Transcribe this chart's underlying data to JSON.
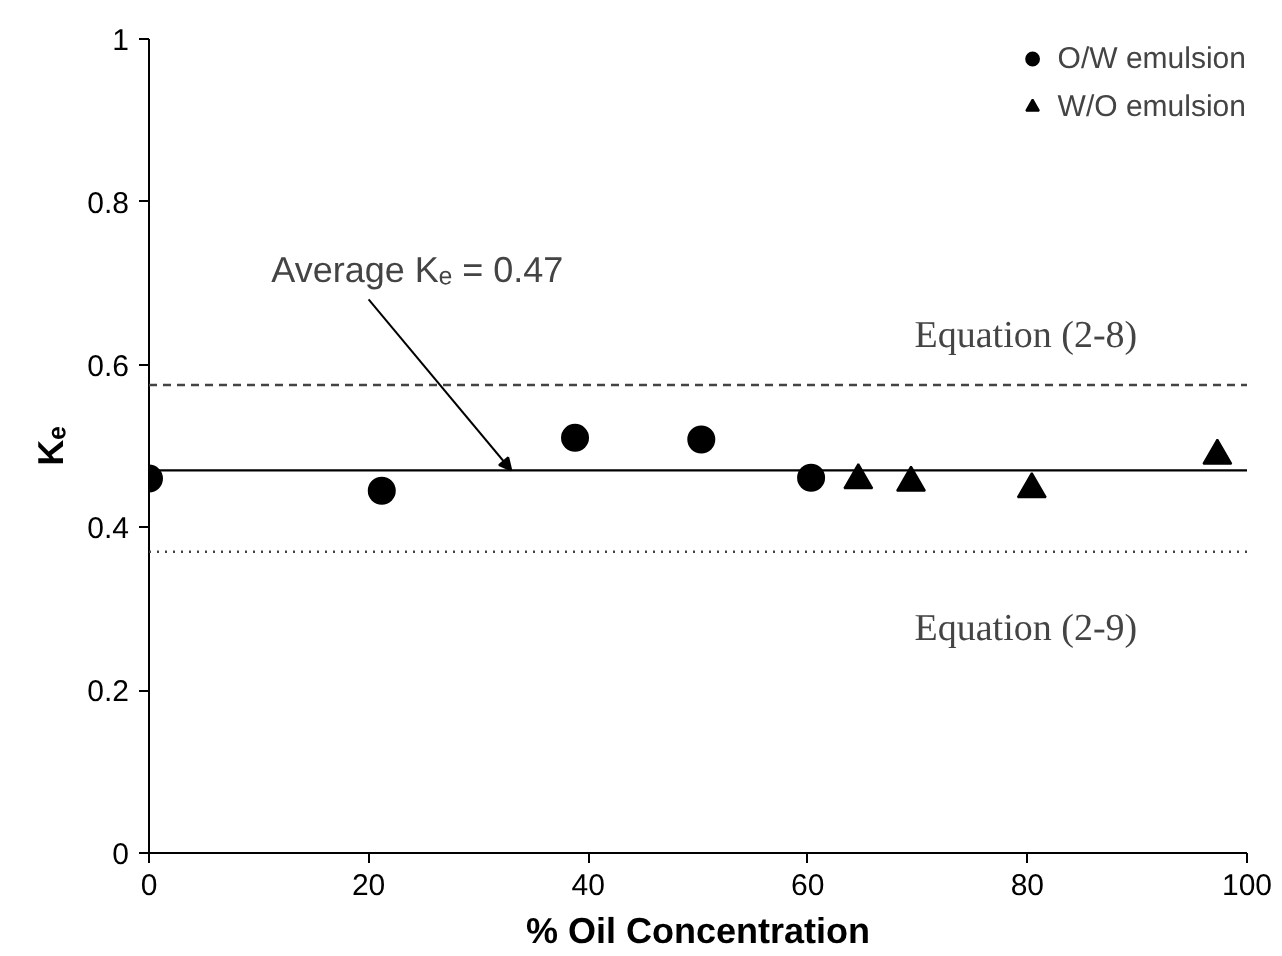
{
  "chart_data": {
    "type": "scatter",
    "xlabel": "% Oil Concentration",
    "ylabel": "Kₑ",
    "series": [
      {
        "name": "O/W emulsion",
        "color": "#000000",
        "marker": "circle",
        "x": [
          0,
          21.2,
          38.8,
          50.3,
          60.3
        ],
        "values": [
          0.46,
          0.445,
          0.51,
          0.508,
          0.461
        ]
      },
      {
        "name": "W/O emulsion",
        "color": "#000000",
        "marker": "triangle",
        "x": [
          64.6,
          69.4,
          80.4,
          97.3
        ],
        "values": [
          0.458,
          0.455,
          0.447,
          0.488
        ]
      }
    ],
    "xlim": [
      0,
      100
    ],
    "ylim": [
      0,
      1
    ],
    "xticks": [
      0,
      20,
      40,
      60,
      80,
      100
    ],
    "yticks": [
      0,
      0.2,
      0.4,
      0.6,
      0.8,
      1
    ],
    "ref_lines": [
      {
        "axis": "y",
        "value": 0.47,
        "color": "#000000",
        "line_style": "solid"
      },
      {
        "axis": "y",
        "value": 0.575,
        "label": "Equation (2-8)",
        "color": "#444444",
        "line_style": "dashed"
      },
      {
        "axis": "y",
        "value": 0.37,
        "label": "Equation (2-9)",
        "color": "#444444",
        "line_style": "dotted"
      }
    ],
    "annotations": [
      {
        "text": "Average Kₑ = 0.47",
        "x": 33,
        "y": 0.47
      }
    ],
    "grid": false,
    "legend": "top right"
  }
}
